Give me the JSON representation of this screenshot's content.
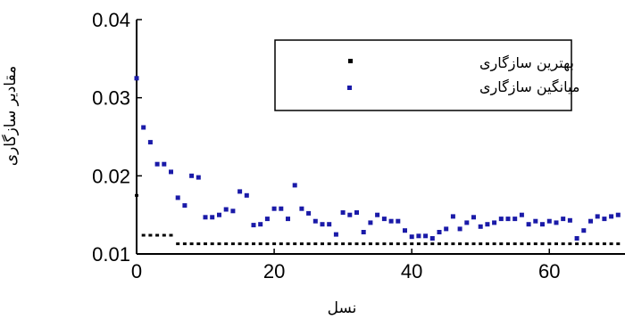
{
  "chart_data": {
    "type": "scatter",
    "xlabel": "نسل",
    "ylabel": "مقادیر سازگاری",
    "xlim": [
      0,
      71
    ],
    "ylim": [
      0.01,
      0.04
    ],
    "x_ticks": [
      0,
      20,
      40,
      60
    ],
    "y_ticks": [
      0.01,
      0.02,
      0.03,
      0.04
    ],
    "x_tick_labels": [
      "0",
      "20",
      "40",
      "60"
    ],
    "y_tick_labels": [
      "0.01",
      "0.02",
      "0.03",
      "0.04"
    ],
    "grid": false,
    "legend_position": "top-right",
    "series": [
      {
        "name": "بهترین سازگاری",
        "color": "#000000",
        "marker": "square-small",
        "x": [
          0,
          1,
          2,
          3,
          4,
          5,
          6,
          7,
          8,
          9,
          10,
          11,
          12,
          13,
          14,
          15,
          16,
          17,
          18,
          19,
          20,
          21,
          22,
          23,
          24,
          25,
          26,
          27,
          28,
          29,
          30,
          31,
          32,
          33,
          34,
          35,
          36,
          37,
          38,
          39,
          40,
          41,
          42,
          43,
          44,
          45,
          46,
          47,
          48,
          49,
          50,
          51,
          52,
          53,
          54,
          55,
          56,
          57,
          58,
          59,
          60,
          61,
          62,
          63,
          64,
          65,
          66,
          67,
          68,
          69,
          70
        ],
        "y": [
          0.0175,
          0.0124,
          0.0124,
          0.0124,
          0.0124,
          0.0124,
          0.0113,
          0.0113,
          0.0113,
          0.0113,
          0.0113,
          0.0113,
          0.0113,
          0.0113,
          0.0113,
          0.0113,
          0.0113,
          0.0113,
          0.0113,
          0.0113,
          0.0113,
          0.0113,
          0.0113,
          0.0113,
          0.0113,
          0.0113,
          0.0113,
          0.0113,
          0.0113,
          0.0113,
          0.0113,
          0.0113,
          0.0113,
          0.0113,
          0.0113,
          0.0113,
          0.0113,
          0.0113,
          0.0113,
          0.0113,
          0.0113,
          0.0113,
          0.0113,
          0.0113,
          0.0113,
          0.0113,
          0.0113,
          0.0113,
          0.0113,
          0.0113,
          0.0113,
          0.0113,
          0.0113,
          0.0113,
          0.0113,
          0.0113,
          0.0113,
          0.0113,
          0.0113,
          0.0113,
          0.0113,
          0.0113,
          0.0113,
          0.0113,
          0.0113,
          0.0113,
          0.0113,
          0.0113,
          0.0113,
          0.0113,
          0.0113
        ]
      },
      {
        "name": "میانگین سازگاری",
        "color": "#1a1aa8",
        "marker": "square",
        "x": [
          0,
          1,
          2,
          3,
          4,
          5,
          6,
          7,
          8,
          9,
          10,
          11,
          12,
          13,
          14,
          15,
          16,
          17,
          18,
          19,
          20,
          21,
          22,
          23,
          24,
          25,
          26,
          27,
          28,
          29,
          30,
          31,
          32,
          33,
          34,
          35,
          36,
          37,
          38,
          39,
          40,
          41,
          42,
          43,
          44,
          45,
          46,
          47,
          48,
          49,
          50,
          51,
          52,
          53,
          54,
          55,
          56,
          57,
          58,
          59,
          60,
          61,
          62,
          63,
          64,
          65,
          66,
          67,
          68,
          69,
          70
        ],
        "y": [
          0.0325,
          0.0262,
          0.0243,
          0.0215,
          0.0215,
          0.0205,
          0.0172,
          0.0162,
          0.02,
          0.0198,
          0.0147,
          0.0147,
          0.015,
          0.0157,
          0.0155,
          0.018,
          0.0175,
          0.0137,
          0.0138,
          0.0145,
          0.0158,
          0.0158,
          0.0145,
          0.0188,
          0.0158,
          0.0152,
          0.0142,
          0.0138,
          0.0138,
          0.0125,
          0.0153,
          0.015,
          0.0153,
          0.0128,
          0.014,
          0.015,
          0.0145,
          0.0142,
          0.0142,
          0.013,
          0.0122,
          0.0123,
          0.0123,
          0.012,
          0.0128,
          0.0132,
          0.0148,
          0.0132,
          0.014,
          0.0147,
          0.0135,
          0.0138,
          0.014,
          0.0145,
          0.0145,
          0.0145,
          0.015,
          0.0138,
          0.0142,
          0.0138,
          0.0142,
          0.014,
          0.0145,
          0.0143,
          0.012,
          0.013,
          0.0142,
          0.0148,
          0.0145,
          0.0148,
          0.015
        ]
      }
    ]
  }
}
